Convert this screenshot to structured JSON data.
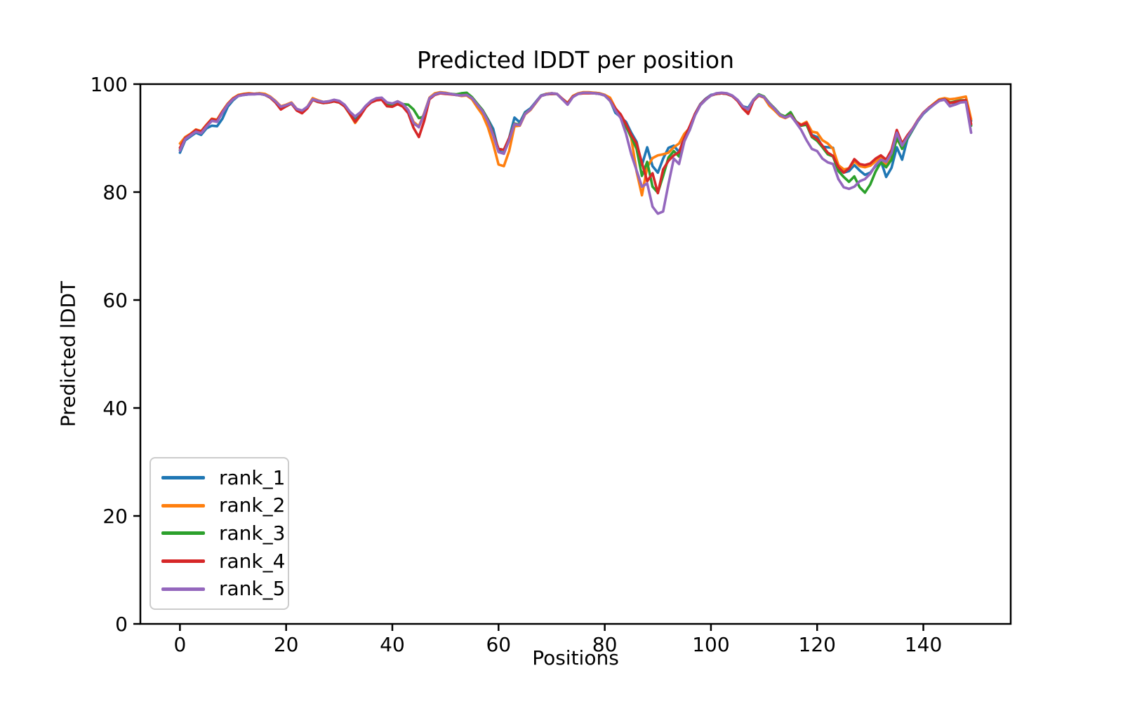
{
  "figure": {
    "background": "#ffffff"
  },
  "chart_data": {
    "type": "line",
    "title": "Predicted lDDT per position",
    "xlabel": "Positions",
    "ylabel": "Predicted lDDT",
    "x": {
      "start": 0,
      "step": 1,
      "count": 150
    },
    "xlim": [
      -7.45,
      156.45
    ],
    "ylim": [
      0,
      100
    ],
    "x_ticks": [
      0,
      20,
      40,
      60,
      80,
      100,
      120,
      140
    ],
    "y_ticks": [
      0,
      20,
      40,
      60,
      80,
      100
    ],
    "grid": false,
    "legend_position": "lower left",
    "line_width": 3.6,
    "series": [
      {
        "name": "rank_1",
        "color": "#1f77b4",
        "values": [
          87.3,
          89.6,
          90.3,
          91.0,
          90.6,
          91.8,
          92.3,
          92.2,
          93.6,
          95.8,
          97.0,
          97.8,
          98.0,
          98.1,
          98.2,
          98.3,
          98.1,
          97.6,
          96.8,
          95.8,
          96.1,
          96.5,
          95.4,
          95.0,
          95.7,
          97.1,
          96.8,
          96.6,
          96.7,
          96.9,
          96.7,
          96.0,
          94.7,
          93.4,
          94.5,
          95.9,
          96.8,
          97.2,
          97.3,
          96.4,
          96.2,
          96.7,
          96.2,
          95.1,
          92.7,
          92.1,
          94.6,
          97.4,
          98.1,
          98.4,
          98.3,
          98.2,
          98.0,
          97.9,
          98.0,
          97.4,
          96.3,
          95.2,
          93.5,
          91.7,
          87.6,
          87.2,
          90.0,
          93.8,
          92.9,
          94.8,
          95.5,
          96.7,
          97.9,
          98.2,
          98.3,
          98.2,
          97.3,
          96.5,
          97.7,
          98.2,
          98.4,
          98.4,
          98.4,
          98.3,
          98.0,
          97.0,
          94.7,
          93.9,
          93.0,
          91.0,
          89.3,
          85.0,
          88.3,
          84.8,
          83.6,
          86.2,
          88.2,
          88.6,
          87.4,
          90.2,
          91.9,
          94.5,
          96.3,
          97.3,
          98.0,
          98.2,
          98.3,
          98.2,
          97.8,
          97.0,
          95.9,
          95.6,
          97.1,
          98.0,
          97.6,
          96.5,
          95.5,
          94.4,
          93.8,
          94.3,
          93.1,
          92.4,
          92.7,
          90.6,
          90.2,
          88.4,
          88.3,
          88.2,
          84.3,
          83.6,
          83.9,
          85.0,
          84.0,
          83.2,
          83.6,
          84.8,
          85.8,
          82.8,
          84.5,
          88.3,
          86.0,
          89.8,
          91.5,
          93.2,
          94.5,
          95.4,
          96.2,
          97.0,
          97.2,
          95.9,
          96.3,
          96.8,
          96.9,
          93.2
        ]
      },
      {
        "name": "rank_2",
        "color": "#ff7f0e",
        "values": [
          89.0,
          90.2,
          90.8,
          91.6,
          91.3,
          92.5,
          93.6,
          93.4,
          95.0,
          96.4,
          97.4,
          98.0,
          98.2,
          98.3,
          98.2,
          98.3,
          98.2,
          97.7,
          96.9,
          95.9,
          96.2,
          96.6,
          95.4,
          95.0,
          95.8,
          97.4,
          97.0,
          96.7,
          96.8,
          96.9,
          96.7,
          95.9,
          94.4,
          92.8,
          94.2,
          95.8,
          96.8,
          97.2,
          97.3,
          96.4,
          96.3,
          96.8,
          96.3,
          95.2,
          93.0,
          92.2,
          94.6,
          97.5,
          98.3,
          98.5,
          98.4,
          98.2,
          98.0,
          97.8,
          97.9,
          97.2,
          95.7,
          94.3,
          92.0,
          88.9,
          85.1,
          84.8,
          87.6,
          92.2,
          92.3,
          94.4,
          95.2,
          96.5,
          97.8,
          98.2,
          98.3,
          98.2,
          97.3,
          96.5,
          97.8,
          98.3,
          98.5,
          98.5,
          98.4,
          98.3,
          98.0,
          97.5,
          95.6,
          94.0,
          92.3,
          90.0,
          83.8,
          79.4,
          84.6,
          86.3,
          86.8,
          87.0,
          87.3,
          88.3,
          89.0,
          90.8,
          91.9,
          94.4,
          96.2,
          97.2,
          97.9,
          98.2,
          98.3,
          98.2,
          97.8,
          97.0,
          95.8,
          95.1,
          97.0,
          97.9,
          97.5,
          96.0,
          95.1,
          94.1,
          93.7,
          94.2,
          93.0,
          92.5,
          93.0,
          91.2,
          91.0,
          89.6,
          89.0,
          88.0,
          85.0,
          84.2,
          84.4,
          85.7,
          84.8,
          84.6,
          84.9,
          85.7,
          86.4,
          85.0,
          86.6,
          89.8,
          88.3,
          90.3,
          91.7,
          93.4,
          94.7,
          95.6,
          96.4,
          97.2,
          97.4,
          97.2,
          97.3,
          97.5,
          97.7,
          93.5
        ]
      },
      {
        "name": "rank_3",
        "color": "#2ca02c",
        "values": [
          87.8,
          89.9,
          90.6,
          91.3,
          91.0,
          92.2,
          93.3,
          93.1,
          94.8,
          96.2,
          97.2,
          97.9,
          98.1,
          98.2,
          98.2,
          98.2,
          98.0,
          97.5,
          96.6,
          95.4,
          95.9,
          96.4,
          95.2,
          94.8,
          95.6,
          97.1,
          96.7,
          96.5,
          96.6,
          96.8,
          96.6,
          95.9,
          94.5,
          93.1,
          94.3,
          95.8,
          96.7,
          97.1,
          97.2,
          96.4,
          96.2,
          96.6,
          96.3,
          96.2,
          95.3,
          93.7,
          94.0,
          97.3,
          98.1,
          98.4,
          98.3,
          98.2,
          98.1,
          98.3,
          98.4,
          97.6,
          96.4,
          95.2,
          93.4,
          90.8,
          88.0,
          87.8,
          90.0,
          92.7,
          92.5,
          94.6,
          95.3,
          96.6,
          97.8,
          98.1,
          98.2,
          98.2,
          97.2,
          96.4,
          97.7,
          98.2,
          98.4,
          98.4,
          98.3,
          98.2,
          97.9,
          96.9,
          95.1,
          93.8,
          92.1,
          90.2,
          88.0,
          83.0,
          85.6,
          81.0,
          79.9,
          83.0,
          86.4,
          87.6,
          86.6,
          89.7,
          91.5,
          94.3,
          96.1,
          97.1,
          97.9,
          98.2,
          98.3,
          98.2,
          97.8,
          97.0,
          95.9,
          95.3,
          97.1,
          98.1,
          97.7,
          96.5,
          95.5,
          94.4,
          94.0,
          94.8,
          93.1,
          92.3,
          92.5,
          90.2,
          89.5,
          88.3,
          87.0,
          86.6,
          83.9,
          82.8,
          81.9,
          82.9,
          80.9,
          79.9,
          81.4,
          83.8,
          85.5,
          84.6,
          86.0,
          90.1,
          88.0,
          90.0,
          91.6,
          93.3,
          94.6,
          95.5,
          96.3,
          97.0,
          97.2,
          96.6,
          96.8,
          97.0,
          97.0,
          92.3
        ]
      },
      {
        "name": "rank_4",
        "color": "#d62728",
        "values": [
          88.2,
          90.0,
          90.7,
          91.5,
          91.2,
          92.4,
          93.5,
          93.3,
          94.9,
          96.3,
          97.3,
          97.9,
          98.1,
          98.2,
          98.2,
          98.2,
          98.0,
          97.5,
          96.6,
          95.3,
          95.9,
          96.4,
          95.1,
          94.6,
          95.5,
          97.1,
          96.7,
          96.5,
          96.6,
          96.8,
          96.6,
          95.9,
          94.5,
          93.0,
          94.2,
          95.7,
          96.6,
          97.0,
          97.1,
          95.9,
          95.8,
          96.3,
          95.8,
          94.6,
          91.9,
          90.2,
          93.2,
          97.2,
          98.0,
          98.3,
          98.2,
          98.1,
          98.0,
          97.9,
          98.0,
          97.4,
          96.2,
          95.0,
          93.2,
          90.7,
          88.0,
          87.8,
          90.0,
          92.6,
          92.4,
          94.5,
          95.3,
          96.6,
          97.8,
          98.1,
          98.2,
          98.2,
          97.3,
          96.4,
          97.7,
          98.2,
          98.3,
          98.3,
          98.3,
          98.2,
          97.9,
          97.0,
          95.5,
          94.4,
          92.6,
          90.6,
          89.0,
          85.4,
          82.0,
          83.5,
          79.8,
          84.2,
          85.8,
          86.8,
          87.4,
          90.0,
          92.2,
          94.5,
          96.2,
          97.2,
          97.9,
          98.2,
          98.3,
          98.2,
          97.8,
          96.9,
          95.5,
          94.5,
          96.9,
          97.9,
          97.6,
          96.4,
          95.4,
          94.3,
          93.8,
          94.3,
          93.0,
          92.4,
          92.8,
          90.4,
          89.8,
          88.6,
          87.3,
          86.7,
          84.6,
          83.6,
          84.4,
          86.1,
          85.2,
          85.0,
          85.3,
          86.2,
          86.8,
          86.0,
          87.8,
          91.5,
          89.0,
          90.5,
          91.8,
          93.4,
          94.7,
          95.6,
          96.3,
          97.0,
          97.2,
          96.5,
          96.7,
          96.9,
          97.0,
          92.6
        ]
      },
      {
        "name": "rank_5",
        "color": "#9467bd",
        "values": [
          87.7,
          89.8,
          90.5,
          91.2,
          90.9,
          92.1,
          93.2,
          93.0,
          94.7,
          96.2,
          97.2,
          97.8,
          98.0,
          98.1,
          98.1,
          98.2,
          98.0,
          97.6,
          96.8,
          95.8,
          96.1,
          96.5,
          95.4,
          95.1,
          95.8,
          97.2,
          96.9,
          96.7,
          96.8,
          97.1,
          96.9,
          96.2,
          94.9,
          94.0,
          94.8,
          96.0,
          96.9,
          97.4,
          97.5,
          96.6,
          96.4,
          96.8,
          96.3,
          95.2,
          92.8,
          92.0,
          94.5,
          97.4,
          98.1,
          98.4,
          98.3,
          98.2,
          98.0,
          97.9,
          98.0,
          97.4,
          96.2,
          95.0,
          93.1,
          90.5,
          87.4,
          87.1,
          89.6,
          92.6,
          92.4,
          94.5,
          95.3,
          96.6,
          97.8,
          98.1,
          98.3,
          98.2,
          97.2,
          96.2,
          97.6,
          98.2,
          98.4,
          98.4,
          98.3,
          98.2,
          97.9,
          96.9,
          95.1,
          93.7,
          90.8,
          87.0,
          84.0,
          81.0,
          81.6,
          77.3,
          76.0,
          76.4,
          81.5,
          86.2,
          85.2,
          89.4,
          91.5,
          94.2,
          96.1,
          97.1,
          97.9,
          98.3,
          98.4,
          98.3,
          97.9,
          97.1,
          95.9,
          95.3,
          97.1,
          98.0,
          97.6,
          96.4,
          95.4,
          94.3,
          93.8,
          94.2,
          92.9,
          91.5,
          89.6,
          88.0,
          87.6,
          86.2,
          85.5,
          85.2,
          82.4,
          80.9,
          80.6,
          81.0,
          82.0,
          82.4,
          83.4,
          85.0,
          86.0,
          85.6,
          87.2,
          91.0,
          88.6,
          90.2,
          91.7,
          93.3,
          94.6,
          95.5,
          96.2,
          96.9,
          97.1,
          95.9,
          96.2,
          96.6,
          96.7,
          91.0
        ]
      }
    ]
  },
  "legend": {
    "entries": [
      {
        "label": "rank_1",
        "color": "#1f77b4"
      },
      {
        "label": "rank_2",
        "color": "#ff7f0e"
      },
      {
        "label": "rank_3",
        "color": "#2ca02c"
      },
      {
        "label": "rank_4",
        "color": "#d62728"
      },
      {
        "label": "rank_5",
        "color": "#9467bd"
      }
    ]
  }
}
